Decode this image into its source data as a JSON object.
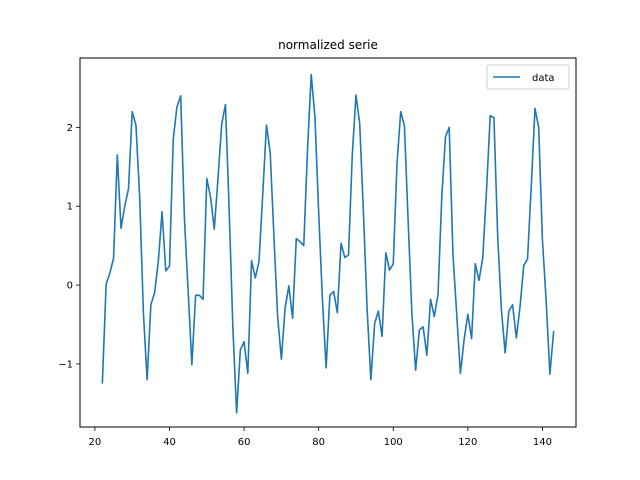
{
  "chart_data": {
    "type": "line",
    "title": "normalized serie",
    "xlabel": "",
    "ylabel": "",
    "xlim": [
      16,
      149
    ],
    "ylim": [
      -1.8,
      2.88
    ],
    "xticks": [
      20,
      40,
      60,
      80,
      100,
      120,
      140
    ],
    "yticks": [
      -1,
      0,
      1,
      2
    ],
    "ytick_labels": [
      "−1",
      "0",
      "1",
      "2"
    ],
    "grid": false,
    "legend": {
      "position": "top-right"
    },
    "color": "#1f77b4",
    "series": [
      {
        "name": "data",
        "x": [
          22,
          23,
          24,
          25,
          26,
          27,
          28,
          29,
          30,
          31,
          32,
          33,
          34,
          35,
          36,
          37,
          38,
          39,
          40,
          41,
          42,
          43,
          44,
          45,
          46,
          47,
          48,
          49,
          50,
          51,
          52,
          53,
          54,
          55,
          56,
          57,
          58,
          59,
          60,
          61,
          62,
          63,
          64,
          65,
          66,
          67,
          68,
          69,
          70,
          71,
          72,
          73,
          74,
          75,
          76,
          77,
          78,
          79,
          80,
          81,
          82,
          83,
          84,
          85,
          86,
          87,
          88,
          89,
          90,
          91,
          92,
          93,
          94,
          95,
          96,
          97,
          98,
          99,
          100,
          101,
          102,
          103,
          104,
          105,
          106,
          107,
          108,
          109,
          110,
          111,
          112,
          113,
          114,
          115,
          116,
          117,
          118,
          119,
          120,
          121,
          122,
          123,
          124,
          125,
          126,
          127,
          128,
          129,
          130,
          131,
          132,
          133,
          134,
          135,
          136,
          137,
          138,
          139,
          140,
          141,
          142,
          143
        ],
        "values": [
          -1.24,
          0.01,
          0.15,
          0.34,
          1.65,
          0.72,
          1.0,
          1.22,
          2.2,
          2.03,
          1.12,
          -0.35,
          -1.2,
          -0.25,
          -0.1,
          0.3,
          0.93,
          0.18,
          0.24,
          1.85,
          2.26,
          2.4,
          0.85,
          -0.08,
          -1.01,
          -0.13,
          -0.13,
          -0.18,
          1.35,
          1.12,
          0.71,
          1.35,
          2.04,
          2.29,
          0.95,
          -0.55,
          -1.62,
          -0.82,
          -0.72,
          -1.12,
          0.31,
          0.09,
          0.3,
          1.15,
          2.03,
          1.68,
          0.62,
          -0.4,
          -0.94,
          -0.29,
          -0.01,
          -0.42,
          0.59,
          0.55,
          0.5,
          1.71,
          2.67,
          2.13,
          0.92,
          -0.18,
          -1.05,
          -0.13,
          -0.08,
          -0.35,
          0.53,
          0.35,
          0.38,
          1.64,
          2.41,
          2.05,
          0.92,
          -0.32,
          -1.2,
          -0.49,
          -0.33,
          -0.65,
          0.41,
          0.19,
          0.27,
          1.54,
          2.2,
          2.02,
          0.8,
          -0.36,
          -1.08,
          -0.57,
          -0.53,
          -0.89,
          -0.18,
          -0.4,
          -0.12,
          1.11,
          1.88,
          2.0,
          0.4,
          -0.36,
          -1.12,
          -0.69,
          -0.37,
          -0.68,
          0.27,
          0.06,
          0.35,
          1.2,
          2.15,
          2.12,
          0.62,
          -0.31,
          -0.86,
          -0.33,
          -0.25,
          -0.67,
          -0.27,
          0.25,
          0.33,
          1.25,
          2.24,
          2.0,
          0.57,
          -0.2,
          -1.13,
          -0.59
        ]
      }
    ]
  }
}
